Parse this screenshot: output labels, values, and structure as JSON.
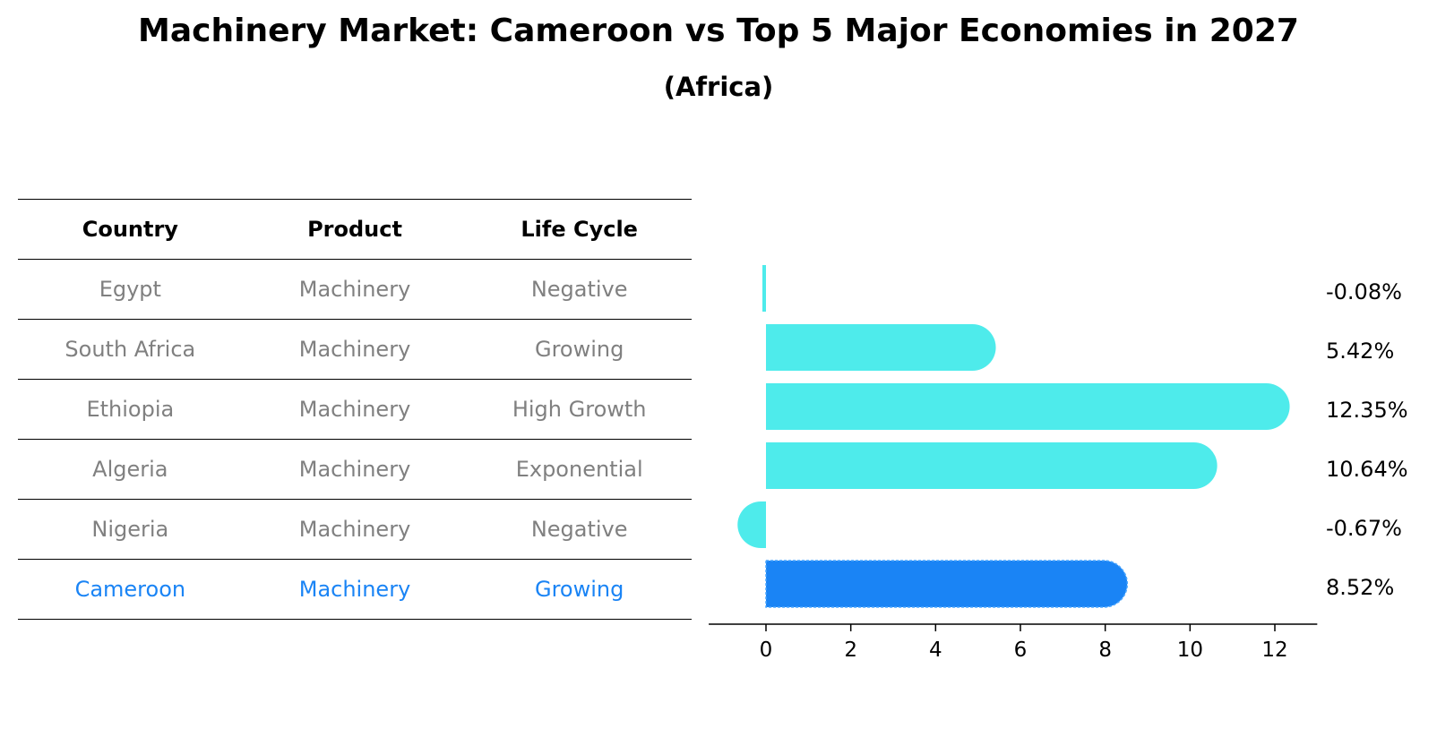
{
  "title": "Machinery Market: Cameroon vs Top 5 Major Economies in 2027",
  "subtitle": "(Africa)",
  "table": {
    "headers": [
      "Country",
      "Product",
      "Life Cycle"
    ],
    "rows": [
      {
        "country": "Egypt",
        "product": "Machinery",
        "life_cycle": "Negative",
        "highlight": false
      },
      {
        "country": "South Africa",
        "product": "Machinery",
        "life_cycle": "Growing",
        "highlight": false
      },
      {
        "country": "Ethiopia",
        "product": "Machinery",
        "life_cycle": "High Growth",
        "highlight": false
      },
      {
        "country": "Algeria",
        "product": "Machinery",
        "life_cycle": "Exponential",
        "highlight": false
      },
      {
        "country": "Nigeria",
        "product": "Machinery",
        "life_cycle": "Negative",
        "highlight": false
      },
      {
        "country": "Cameroon",
        "product": "Machinery",
        "life_cycle": "Growing",
        "highlight": true
      }
    ]
  },
  "colors": {
    "bar": "#4EEBEB",
    "highlight": "#1A84F5",
    "text_muted": "#808080",
    "text_highlight": "#1A84F5"
  },
  "chart_data": {
    "type": "bar",
    "orientation": "horizontal",
    "categories": [
      "Egypt",
      "South Africa",
      "Ethiopia",
      "Algeria",
      "Nigeria",
      "Cameroon"
    ],
    "values": [
      -0.08,
      5.42,
      12.35,
      10.64,
      -0.67,
      8.52
    ],
    "labels": [
      "-0.08%",
      "5.42%",
      "12.35%",
      "10.64%",
      "-0.67%",
      "8.52%"
    ],
    "xticks": [
      0,
      2,
      4,
      6,
      8,
      10,
      12
    ],
    "xlim": [
      -1.35,
      13
    ],
    "highlight_category": "Cameroon",
    "grid": false,
    "xlabel": "",
    "ylabel": ""
  }
}
